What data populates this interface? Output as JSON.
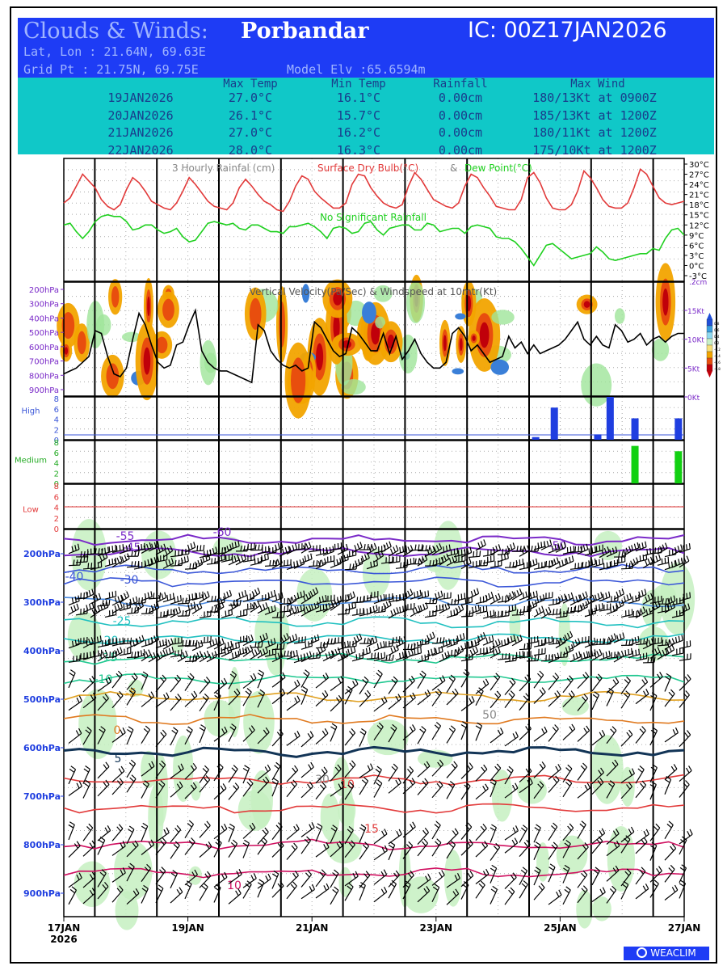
{
  "header": {
    "title_left": "Clouds & Winds:",
    "location": "Porbandar",
    "ic": "IC: 00Z17JAN2026",
    "latlon": "Lat, Lon : 21.64N, 69.63E",
    "gridpt": "Grid Pt  : 21.75N, 69.75E",
    "model_elv": "Model Elv :65.6594m"
  },
  "summary": {
    "columns": [
      "Max Temp",
      "Min Temp",
      "Rainfall",
      "Max Wind"
    ],
    "rows": [
      {
        "date": "19JAN2026",
        "max": "27.0°C",
        "min": "16.1°C",
        "rain": "0.00cm",
        "wind": "180/13Kt at 0900Z"
      },
      {
        "date": "20JAN2026",
        "max": "26.1°C",
        "min": "15.7°C",
        "rain": "0.00cm",
        "wind": "185/13Kt at 1200Z"
      },
      {
        "date": "21JAN2026",
        "max": "27.0°C",
        "min": "16.2°C",
        "rain": "0.00cm",
        "wind": "180/11Kt at 1200Z"
      },
      {
        "date": "22JAN2026",
        "max": "28.0°C",
        "min": "16.3°C",
        "rain": "0.00cm",
        "wind": "175/10Kt at 1200Z"
      }
    ]
  },
  "panel1": {
    "title_rain": "3 Hourly Rainfal (cm)",
    "title_dry": "Surface Dry Bulb(°C)",
    "title_amp": "&",
    "title_dew": "Dew Point(°C)",
    "no_rain": "No Significant Rainfall",
    "temp_ticks": [
      "30°C",
      "27°C",
      "24°C",
      "21°C",
      "18°C",
      "15°C",
      "12°C",
      "9°C",
      "6°C",
      "3°C",
      "0°C",
      "-3°C"
    ],
    "rain_tick": ".2cm"
  },
  "panel2": {
    "title": "Vertical Velocity(Pa/Sec) & Windspeed at 10mtr(Kt)",
    "levels": [
      "200hPa",
      "300hPa",
      "400hPa",
      "500hPa",
      "600hPa",
      "700hPa",
      "800hPa",
      "900hPa"
    ],
    "wind_ticks": [
      "15Kt",
      "10Kt",
      "5Kt",
      "0Kt"
    ],
    "colorbar": [
      "0.8",
      "0.6",
      "0.4",
      "0.2",
      "-0.2",
      "-0.4",
      "-0.6",
      "-0.8"
    ]
  },
  "panel3": {
    "high": "High",
    "medium": "Medium",
    "low": "Low",
    "ticks": [
      "8",
      "6",
      "4",
      "2",
      "0"
    ]
  },
  "panel4": {
    "levels": [
      "200hPa",
      "300hPa",
      "400hPa",
      "500hPa",
      "600hPa",
      "700hPa",
      "800hPa",
      "900hPa"
    ],
    "contour_labels": [
      "-60",
      "-55",
      "-50",
      "-45",
      "-40",
      "-30",
      "-25",
      "-20",
      "-15",
      "-10",
      "-5",
      "0",
      "5",
      "10",
      "15",
      "10",
      "30",
      "50"
    ]
  },
  "xaxis": {
    "labels": [
      "17JAN",
      "19JAN",
      "21JAN",
      "23JAN",
      "25JAN",
      "27JAN"
    ],
    "year": "2026"
  },
  "logo": "WEACLIM",
  "chart_data": {
    "type": "line",
    "title": "3 Hourly Rainfal (cm) Surface Dry Bulb(°C) & Dew Point(°C)",
    "x_start": "00Z17JAN2026",
    "x_step_hours": 3,
    "series": [
      {
        "name": "Surface Dry Bulb(°C)",
        "values": [
          18.5,
          20,
          23.5,
          27,
          25,
          23,
          19.5,
          17.5,
          16.5,
          18,
          22.5,
          26,
          24.5,
          22,
          19,
          18,
          17,
          16.5,
          18.5,
          22,
          26,
          24,
          21.5,
          19,
          17.5,
          17,
          16.5,
          18.5,
          23,
          25.5,
          23.5,
          21,
          19,
          18,
          16.5,
          16,
          19,
          23.5,
          26.5,
          25.5,
          22,
          20,
          18.5,
          17,
          17,
          18.5,
          24,
          27,
          26.5,
          23,
          20.5,
          18.5,
          17.5,
          17,
          18,
          23.5,
          27.5,
          25.5,
          22.5,
          19.5,
          18.5,
          17.5,
          17,
          18.5,
          23.5,
          27,
          26,
          23,
          20.5,
          17.5,
          17,
          16.5,
          16.5,
          19.5,
          26,
          27.5,
          24.5,
          20,
          17,
          16.5,
          16.5,
          18,
          22,
          28,
          26,
          23,
          19.5,
          17.5,
          17,
          17,
          18.5,
          23,
          28.5,
          27,
          23.5,
          20,
          18.5,
          18,
          18.5,
          19
        ]
      },
      {
        "name": "Dew Point(°C)",
        "values": [
          12,
          12.5,
          10,
          8,
          10,
          13,
          14.5,
          15,
          14.5,
          14.5,
          13,
          10.5,
          11,
          12,
          12,
          10.5,
          9.5,
          10,
          11,
          8.5,
          7,
          7.5,
          10,
          12.5,
          13,
          12.5,
          12,
          12.5,
          11,
          10.5,
          12,
          12,
          11,
          10,
          10,
          9.5,
          11.5,
          11.5,
          12,
          12.5,
          11.5,
          10,
          8,
          11,
          11.5,
          11,
          9.5,
          10,
          12.5,
          13,
          10.5,
          9,
          11,
          11.5,
          12,
          12,
          10.5,
          10.5,
          12.5,
          12,
          10,
          10.5,
          11,
          11,
          9.5,
          11.5,
          12,
          11.5,
          11,
          8.5,
          8,
          8,
          7,
          5,
          2.5,
          0,
          3,
          6,
          6.5,
          5,
          3.5,
          2,
          2.5,
          3,
          3.5,
          5.5,
          4,
          2,
          1.5,
          2,
          2.5,
          3,
          3.5,
          3.5,
          5,
          4.5,
          8,
          10.5,
          11,
          9
        ]
      },
      {
        "name": "Windspeed at 10mtr(Kt)",
        "values": [
          4,
          4.5,
          5,
          6,
          7,
          11.5,
          11,
          7,
          4,
          3.5,
          5,
          10,
          14.5,
          12.5,
          9,
          6,
          5,
          5.5,
          9,
          9.5,
          12.5,
          15,
          8,
          6,
          5,
          4.5,
          4.5,
          4,
          3.5,
          3,
          2.5,
          12.5,
          11.5,
          8,
          6.5,
          5.5,
          5,
          5.5,
          4.5,
          5,
          13,
          12,
          10,
          8,
          7,
          7.5,
          12,
          11,
          9.5,
          8,
          8,
          11,
          7.5,
          10.5,
          6.5,
          8,
          10,
          7.5,
          6,
          5,
          5,
          6,
          11,
          12,
          10.5,
          8,
          9,
          7.5,
          6,
          6.5,
          7,
          10.5,
          8.5,
          9.5,
          7.5,
          9,
          7.5,
          8,
          8.5,
          9,
          10,
          11.5,
          13,
          10,
          9,
          10.5,
          9,
          8.5,
          12.5,
          11.5,
          9.5,
          10,
          11,
          9,
          10,
          10.5,
          9.5,
          10.5,
          11,
          11
        ]
      }
    ],
    "cloud_bars": {
      "high": [
        {
          "day": "24.6",
          "value": 0.5
        },
        {
          "day": "24.9",
          "value": 6
        },
        {
          "day": "25.6",
          "value": 1
        },
        {
          "day": "25.8",
          "value": 8
        },
        {
          "day": "26.2",
          "value": 4
        },
        {
          "day": "26.9",
          "value": 4
        }
      ],
      "medium": [
        {
          "day": "26.2",
          "value": 7
        },
        {
          "day": "26.9",
          "value": 6
        }
      ],
      "low": []
    },
    "xlabel": "",
    "ylabel": "",
    "grid": true
  }
}
